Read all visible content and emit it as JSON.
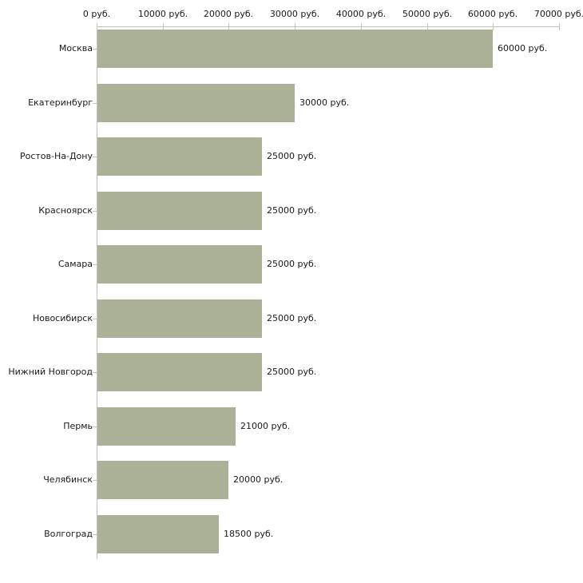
{
  "chart_data": {
    "type": "bar",
    "orientation": "horizontal",
    "title": "",
    "xlabel": "",
    "ylabel": "",
    "legend": null,
    "grid": false,
    "x_axis": {
      "position": "top",
      "min": 0,
      "max": 70000,
      "ticks": [
        0,
        10000,
        20000,
        30000,
        40000,
        50000,
        60000,
        70000
      ],
      "tick_labels": [
        "0 руб.",
        "10000 руб.",
        "20000 руб.",
        "30000 руб.",
        "40000 руб.",
        "50000 руб.",
        "60000 руб.",
        "70000 руб."
      ]
    },
    "categories": [
      "Москва",
      "Екатеринбург",
      "Ростов-На-Дону",
      "Красноярск",
      "Самара",
      "Новосибирск",
      "Нижний Новгород",
      "Пермь",
      "Челябинск",
      "Волгоград"
    ],
    "values": [
      60000,
      30000,
      25000,
      25000,
      25000,
      25000,
      25000,
      21000,
      20000,
      18500
    ],
    "value_labels": [
      "60000 руб.",
      "30000 руб.",
      "25000 руб.",
      "25000 руб.",
      "25000 руб.",
      "25000 руб.",
      "25000 руб.",
      "21000 руб.",
      "20000 руб.",
      "18500 руб."
    ],
    "colors": {
      "bar_fill": "#abb197",
      "axis_line": "#c0c0c0",
      "tick_mark": "#c9c9a0",
      "text": "#1a1a1a",
      "background": "#ffffff"
    }
  }
}
